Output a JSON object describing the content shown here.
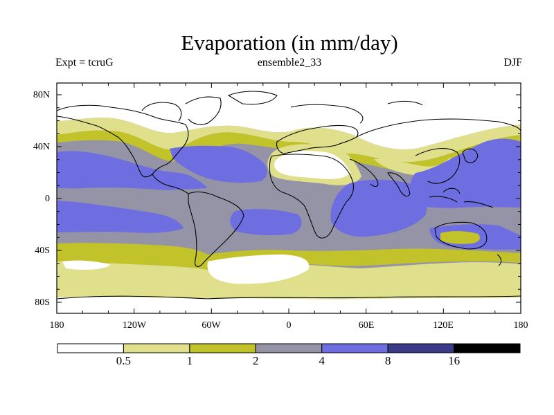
{
  "title": "Evaporation (in mm/day)",
  "subtitles": {
    "left": "Expt = tcruG",
    "center": "ensemble2_33",
    "right": "DJF"
  },
  "lat_labels": [
    "80N",
    "40N",
    "0",
    "40S",
    "80S"
  ],
  "lon_labels": [
    "180",
    "120W",
    "60W",
    "0",
    "60E",
    "120E",
    "180"
  ],
  "legend": {
    "colors": [
      "#ffffff",
      "#e0e08c",
      "#c2c22a",
      "#9494a6",
      "#6e6ee0",
      "#3a3a86",
      "#000000"
    ],
    "labels": [
      "0.5",
      "1",
      "2",
      "4",
      "8",
      "16"
    ]
  }
}
